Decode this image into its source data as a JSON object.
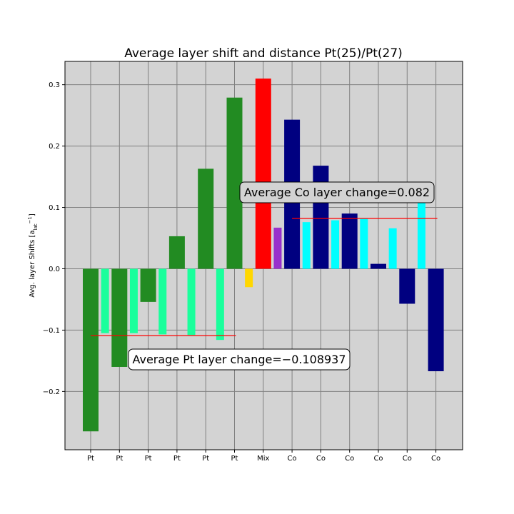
{
  "chart_data": {
    "type": "bar",
    "title": "Average layer shift and distance Pt(25)/Pt(27)",
    "ylabel_main": "Avg. layer Shifts [a",
    "ylabel_sub": "lat",
    "ylabel_sup": "−1",
    "ylabel_end": "]",
    "ylim": [
      -0.295,
      0.338
    ],
    "yticks": [
      -0.2,
      -0.1,
      0.0,
      0.1,
      0.2,
      0.3
    ],
    "ytick_labels": [
      "−0.2",
      "−0.1",
      "0.0",
      "0.1",
      "0.2",
      "0.3"
    ],
    "grid": true,
    "background_color": "#d3d3d3",
    "categories": [
      "Pt",
      "Pt",
      "Pt",
      "Pt",
      "Pt",
      "Pt",
      "Mix",
      "Co",
      "Co",
      "Co",
      "Co",
      "Co",
      "Co"
    ],
    "shift_bars": {
      "values": [
        -0.265,
        -0.16,
        -0.054,
        0.053,
        0.163,
        0.279,
        0.31,
        0.243,
        0.168,
        0.09,
        0.008,
        -0.057,
        -0.167
      ],
      "colors": [
        "#228b22",
        "#228b22",
        "#228b22",
        "#228b22",
        "#228b22",
        "#228b22",
        "#ff0000",
        "#000080",
        "#000080",
        "#000080",
        "#000080",
        "#000080",
        "#000080"
      ]
    },
    "distance_bars": {
      "values": [
        -0.105,
        -0.105,
        -0.107,
        -0.108,
        -0.116,
        -0.03,
        0.067,
        0.076,
        0.079,
        0.082,
        0.066,
        0.11
      ],
      "colors": [
        "#1aff9c",
        "#1aff9c",
        "#1aff9c",
        "#1aff9c",
        "#1aff9c",
        "#ffd700",
        "#9932cc",
        "#00ffff",
        "#00ffff",
        "#00ffff",
        "#00ffff",
        "#00ffff"
      ]
    },
    "average_lines": [
      {
        "value": -0.108937,
        "from_index": 0,
        "to_index": 5,
        "color": "#ff0000"
      },
      {
        "value": 0.082,
        "from_index": 7,
        "to_index": 12,
        "color": "#ff0000"
      }
    ],
    "annotations": [
      {
        "text": "Average Co layer change=0.082"
      },
      {
        "text": "Average Pt layer change=−0.108937"
      }
    ]
  }
}
